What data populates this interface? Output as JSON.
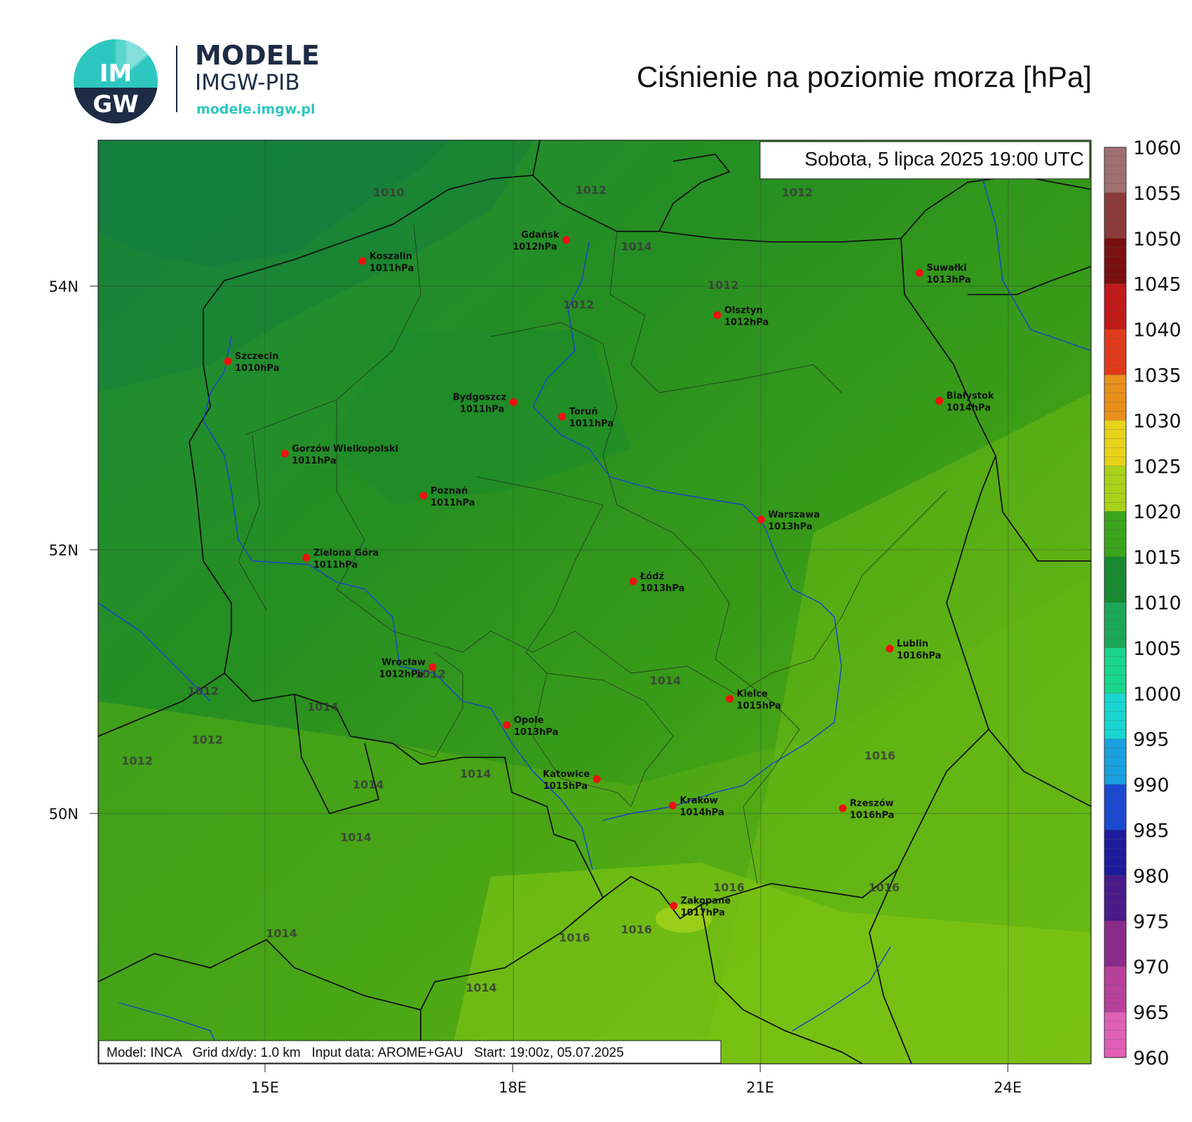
{
  "logo": {
    "circle_text_top": "IM",
    "circle_text_bottom": "GW",
    "title": "MODELE",
    "subtitle": "IMGW-PIB",
    "url": "modele.imgw.pl",
    "colors": {
      "teal": "#2ec7c0",
      "navy": "#1d2b45"
    }
  },
  "header": {
    "title": "Ciśnienie na poziomie morza [hPa]"
  },
  "map": {
    "datetime_label": "Sobota, 5 lipca 2025 19:00 UTC",
    "footer_label": "Model: INCA   Grid dx/dy: 1.0 km   Input data: AROME+GAU   Start: 19:00z, 05.07.2025",
    "lat_ticks": [
      {
        "label": "54N",
        "lat": 54
      },
      {
        "label": "52N",
        "lat": 52
      },
      {
        "label": "50N",
        "lat": 50
      }
    ],
    "lon_ticks": [
      {
        "label": "15E",
        "lon": 15
      },
      {
        "label": "18E",
        "lon": 18
      },
      {
        "label": "21E",
        "lon": 21
      },
      {
        "label": "24E",
        "lon": 24
      }
    ],
    "cities": [
      {
        "name": "Gdańsk",
        "value": "1012hPa",
        "lon": 18.65,
        "lat": 54.35
      },
      {
        "name": "Koszalin",
        "value": "1011hPa",
        "lon": 16.18,
        "lat": 54.19
      },
      {
        "name": "Suwałki",
        "value": "1013hPa",
        "lon": 22.93,
        "lat": 54.1
      },
      {
        "name": "Olsztyn",
        "value": "1012hPa",
        "lon": 20.48,
        "lat": 53.78
      },
      {
        "name": "Szczecin",
        "value": "1010hPa",
        "lon": 14.55,
        "lat": 53.43
      },
      {
        "name": "Białystok",
        "value": "1014hPa",
        "lon": 23.17,
        "lat": 53.13
      },
      {
        "name": "Bydgoszcz",
        "value": "1011hPa",
        "lon": 18.01,
        "lat": 53.12
      },
      {
        "name": "Toruń",
        "value": "1011hPa",
        "lon": 18.6,
        "lat": 53.01
      },
      {
        "name": "Gorzów Wielkopolski",
        "value": "1011hPa",
        "lon": 15.24,
        "lat": 52.73
      },
      {
        "name": "Poznań",
        "value": "1011hPa",
        "lon": 16.92,
        "lat": 52.41
      },
      {
        "name": "Warszawa",
        "value": "1013hPa",
        "lon": 21.01,
        "lat": 52.23
      },
      {
        "name": "Zielona Góra",
        "value": "1011hPa",
        "lon": 15.5,
        "lat": 51.94
      },
      {
        "name": "Łódź",
        "value": "1013hPa",
        "lon": 19.46,
        "lat": 51.76
      },
      {
        "name": "Lublin",
        "value": "1016hPa",
        "lon": 22.57,
        "lat": 51.25
      },
      {
        "name": "Wrocław",
        "value": "1012hPa",
        "lon": 17.03,
        "lat": 51.11
      },
      {
        "name": "Kielce",
        "value": "1015hPa",
        "lon": 20.63,
        "lat": 50.87
      },
      {
        "name": "Opole",
        "value": "1013hPa",
        "lon": 17.93,
        "lat": 50.67
      },
      {
        "name": "Katowice",
        "value": "1015hPa",
        "lon": 19.02,
        "lat": 50.26
      },
      {
        "name": "Rzeszów",
        "value": "1016hPa",
        "lon": 22.0,
        "lat": 50.04
      },
      {
        "name": "Kraków",
        "value": "1014hPa",
        "lon": 19.94,
        "lat": 50.06
      },
      {
        "name": "Zakopane",
        "value": "1017hPa",
        "lon": 19.95,
        "lat": 49.3
      }
    ],
    "isobar_labels": [
      {
        "text": "1010",
        "lon": 16.5,
        "lat": 54.68
      },
      {
        "text": "1012",
        "lon": 18.95,
        "lat": 54.7
      },
      {
        "text": "1012",
        "lon": 21.45,
        "lat": 54.68
      },
      {
        "text": "1014",
        "lon": 19.5,
        "lat": 54.27
      },
      {
        "text": "1012",
        "lon": 20.55,
        "lat": 53.98
      },
      {
        "text": "1012",
        "lon": 18.8,
        "lat": 53.83
      },
      {
        "text": "1012",
        "lon": 17.0,
        "lat": 51.03
      },
      {
        "text": "1014",
        "lon": 19.85,
        "lat": 50.98
      },
      {
        "text": "1012",
        "lon": 14.25,
        "lat": 50.9
      },
      {
        "text": "1014",
        "lon": 15.7,
        "lat": 50.78
      },
      {
        "text": "1012",
        "lon": 14.3,
        "lat": 50.53
      },
      {
        "text": "1012",
        "lon": 13.45,
        "lat": 50.37
      },
      {
        "text": "1016",
        "lon": 22.45,
        "lat": 50.41
      },
      {
        "text": "1014",
        "lon": 16.25,
        "lat": 50.19
      },
      {
        "text": "1014",
        "lon": 17.55,
        "lat": 50.27
      },
      {
        "text": "1014",
        "lon": 16.1,
        "lat": 49.79
      },
      {
        "text": "1016",
        "lon": 20.62,
        "lat": 49.41
      },
      {
        "text": "1016",
        "lon": 22.5,
        "lat": 49.41
      },
      {
        "text": "1014",
        "lon": 15.2,
        "lat": 49.06
      },
      {
        "text": "1016",
        "lon": 18.75,
        "lat": 49.03
      },
      {
        "text": "1016",
        "lon": 19.5,
        "lat": 49.09
      },
      {
        "text": "1014",
        "lon": 17.62,
        "lat": 48.65
      }
    ]
  },
  "colorbar": {
    "ticks": [
      "1060",
      "1055",
      "1050",
      "1045",
      "1040",
      "1035",
      "1030",
      "1025",
      "1020",
      "1015",
      "1010",
      "1005",
      "1000",
      "995",
      "990",
      "985",
      "980",
      "975",
      "970",
      "965",
      "960"
    ],
    "range": [
      960,
      1060
    ]
  }
}
